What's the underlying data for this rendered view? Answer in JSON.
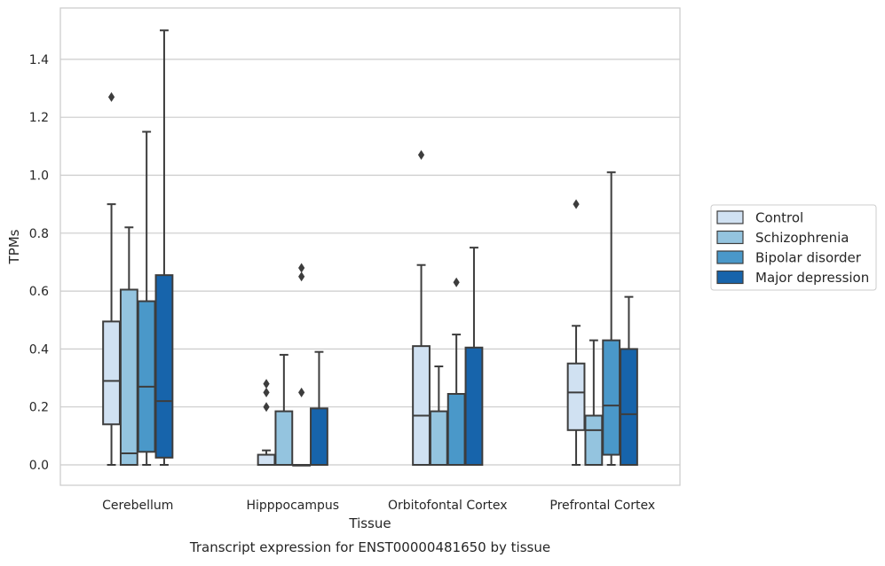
{
  "chart_data": {
    "type": "box",
    "title": "Transcript expression for ENST00000481650 by tissue",
    "xlabel": "Tissue",
    "ylabel": "TPMs",
    "ylim": [
      -0.07,
      1.58
    ],
    "yticks": [
      "0.0",
      "0.2",
      "0.4",
      "0.6",
      "0.8",
      "1.0",
      "1.2",
      "1.4"
    ],
    "categories": [
      "Cerebellum",
      "Hipppocampus",
      "Orbitofontal Cortex",
      "Prefrontal Cortex"
    ],
    "grid": "horizontal",
    "legend_position": "right",
    "series": [
      {
        "name": "Control",
        "color": "#d0e1f2",
        "boxes": [
          {
            "whislo": 0.0,
            "q1": 0.14,
            "med": 0.29,
            "q3": 0.495,
            "whishi": 0.9,
            "fliers": [
              1.27
            ]
          },
          {
            "whislo": 0.0,
            "q1": 0.0,
            "med": 0.0,
            "q3": 0.035,
            "whishi": 0.05,
            "fliers": [
              0.2,
              0.25,
              0.28
            ]
          },
          {
            "whislo": 0.0,
            "q1": 0.0,
            "med": 0.17,
            "q3": 0.41,
            "whishi": 0.69,
            "fliers": [
              1.07
            ]
          },
          {
            "whislo": 0.0,
            "q1": 0.12,
            "med": 0.25,
            "q3": 0.35,
            "whishi": 0.48,
            "fliers": [
              0.9
            ]
          }
        ]
      },
      {
        "name": "Schizophrenia",
        "color": "#94c4df",
        "boxes": [
          {
            "whislo": 0.0,
            "q1": 0.0,
            "med": 0.04,
            "q3": 0.605,
            "whishi": 0.82,
            "fliers": []
          },
          {
            "whislo": 0.0,
            "q1": 0.0,
            "med": 0.0,
            "q3": 0.185,
            "whishi": 0.38,
            "fliers": []
          },
          {
            "whislo": 0.0,
            "q1": 0.0,
            "med": 0.0,
            "q3": 0.185,
            "whishi": 0.34,
            "fliers": []
          },
          {
            "whislo": 0.0,
            "q1": 0.0,
            "med": 0.12,
            "q3": 0.17,
            "whishi": 0.43,
            "fliers": []
          }
        ]
      },
      {
        "name": "Bipolar disorder",
        "color": "#4a98c9",
        "boxes": [
          {
            "whislo": 0.0,
            "q1": 0.045,
            "med": 0.27,
            "q3": 0.565,
            "whishi": 1.15,
            "fliers": []
          },
          {
            "whislo": 0.0,
            "q1": 0.0,
            "med": 0.0,
            "q3": 0.0,
            "whishi": 0.0,
            "fliers": [
              0.25,
              0.65,
              0.68
            ]
          },
          {
            "whislo": 0.0,
            "q1": 0.0,
            "med": 0.0,
            "q3": 0.245,
            "whishi": 0.45,
            "fliers": [
              0.63
            ]
          },
          {
            "whislo": 0.0,
            "q1": 0.035,
            "med": 0.205,
            "q3": 0.43,
            "whishi": 1.01,
            "fliers": []
          }
        ]
      },
      {
        "name": "Major depression",
        "color": "#1764ab",
        "boxes": [
          {
            "whislo": 0.0,
            "q1": 0.025,
            "med": 0.22,
            "q3": 0.655,
            "whishi": 1.5,
            "fliers": []
          },
          {
            "whislo": 0.0,
            "q1": 0.0,
            "med": 0.0,
            "q3": 0.195,
            "whishi": 0.39,
            "fliers": []
          },
          {
            "whislo": 0.0,
            "q1": 0.0,
            "med": 0.0,
            "q3": 0.405,
            "whishi": 0.75,
            "fliers": []
          },
          {
            "whislo": 0.0,
            "q1": 0.0,
            "med": 0.175,
            "q3": 0.4,
            "whishi": 0.58,
            "fliers": []
          }
        ]
      }
    ]
  }
}
